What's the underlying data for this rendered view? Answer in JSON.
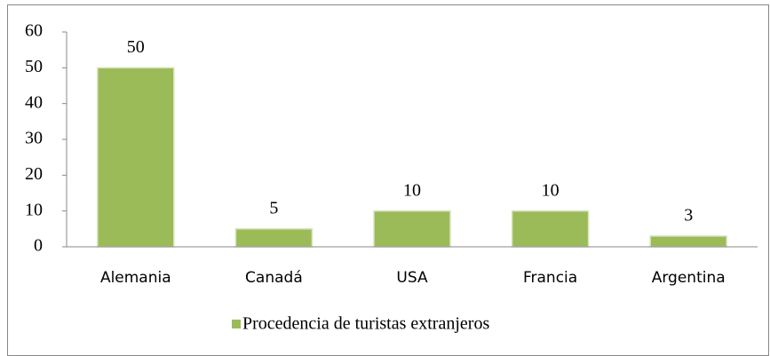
{
  "chart_data": {
    "type": "bar",
    "categories": [
      "Alemania",
      "Canadá",
      "USA",
      "Francia",
      "Argentina"
    ],
    "series": [
      {
        "name": "Procedencia de turistas extranjeros",
        "color": "#9bbb59",
        "values": [
          50,
          5,
          10,
          10,
          3
        ]
      }
    ],
    "ylim": [
      0,
      60
    ],
    "yticks": [
      0,
      10,
      20,
      30,
      40,
      50,
      60
    ],
    "grid": false,
    "legend": "bottom"
  }
}
